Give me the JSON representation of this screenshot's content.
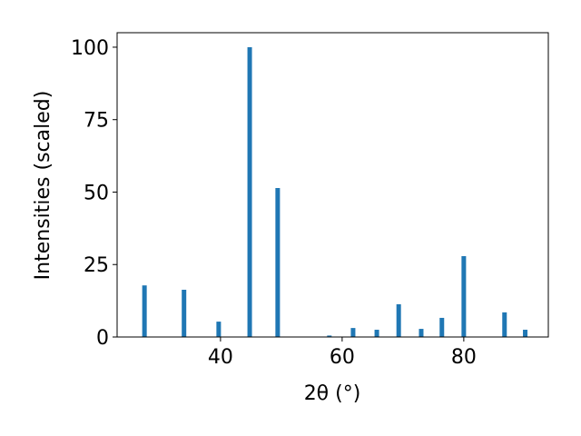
{
  "chart_data": {
    "type": "bar",
    "x": [
      27.5,
      34.0,
      39.7,
      44.8,
      49.4,
      57.9,
      61.8,
      65.7,
      69.3,
      73.0,
      76.4,
      80.0,
      86.7,
      90.1
    ],
    "values": [
      17.8,
      16.3,
      5.3,
      100,
      51.4,
      0.5,
      3.1,
      2.5,
      11.3,
      2.8,
      6.6,
      27.9,
      8.5,
      2.5
    ],
    "color": "#1f77b4",
    "xlabel": "2θ (°)",
    "ylabel": "Intensities (scaled)",
    "xlim": [
      23.0,
      93.9
    ],
    "ylim": [
      0,
      105
    ],
    "xticks": [
      40,
      60,
      80
    ],
    "yticks": [
      0,
      25,
      50,
      75,
      100
    ]
  }
}
